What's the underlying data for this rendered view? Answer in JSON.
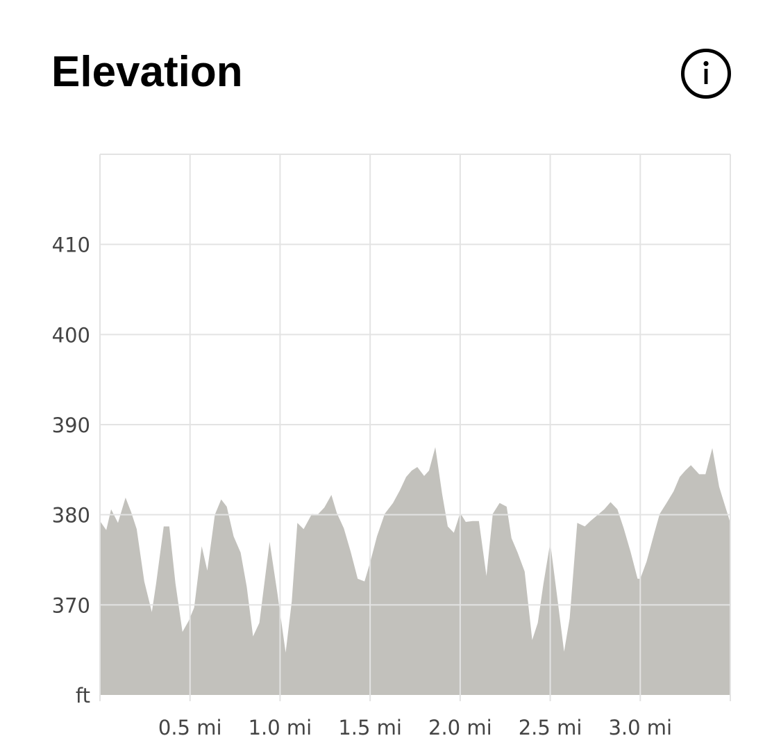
{
  "header": {
    "title": "Elevation",
    "info_icon": "info-icon"
  },
  "colors": {
    "area_fill": "#c2c1bc",
    "grid": "#e3e3e3",
    "tick_text": "#444444"
  },
  "chart_data": {
    "type": "area",
    "title": "Elevation",
    "xlabel": "",
    "ylabel": "",
    "y_unit_label": "ft",
    "xlim": [
      0,
      3.5
    ],
    "ylim": [
      360,
      420
    ],
    "grid": true,
    "x_ticks": [
      {
        "value": 0.5,
        "label": "0.5 mi"
      },
      {
        "value": 1.0,
        "label": "1.0 mi"
      },
      {
        "value": 1.5,
        "label": "1.5 mi"
      },
      {
        "value": 2.0,
        "label": "2.0 mi"
      },
      {
        "value": 2.5,
        "label": "2.5 mi"
      },
      {
        "value": 3.0,
        "label": "3.0 mi"
      }
    ],
    "y_ticks": [
      {
        "value": 360,
        "label": "ft"
      },
      {
        "value": 370,
        "label": "370"
      },
      {
        "value": 380,
        "label": "380"
      },
      {
        "value": 390,
        "label": "390"
      },
      {
        "value": 400,
        "label": "400"
      },
      {
        "value": 410,
        "label": "410"
      }
    ],
    "series": [
      {
        "x": [
          0.0,
          0.035,
          0.062,
          0.1,
          0.142,
          0.173,
          0.204,
          0.246,
          0.288,
          0.312,
          0.354,
          0.385,
          0.419,
          0.458,
          0.492,
          0.523,
          0.565,
          0.596,
          0.638,
          0.673,
          0.704,
          0.742,
          0.781,
          0.815,
          0.85,
          0.885,
          0.942,
          0.985,
          1.031,
          1.065,
          1.096,
          1.131,
          1.177,
          1.208,
          1.246,
          1.285,
          1.315,
          1.354,
          1.392,
          1.431,
          1.469,
          1.5,
          1.538,
          1.581,
          1.627,
          1.665,
          1.7,
          1.731,
          1.762,
          1.8,
          1.827,
          1.862,
          1.9,
          1.931,
          1.965,
          2.0,
          2.031,
          2.069,
          2.104,
          2.146,
          2.181,
          2.219,
          2.258,
          2.285,
          2.319,
          2.358,
          2.4,
          2.431,
          2.462,
          2.5,
          2.538,
          2.577,
          2.608,
          2.65,
          2.692,
          2.723,
          2.765,
          2.8,
          2.835,
          2.873,
          2.908,
          2.946,
          2.985,
          3.0,
          3.035,
          3.077,
          3.108,
          3.146,
          3.185,
          3.219,
          3.25,
          3.281,
          3.327,
          3.362,
          3.4,
          3.438,
          3.5
        ],
        "y": [
          379.3,
          378.3,
          380.6,
          379.1,
          381.9,
          380.3,
          378.4,
          372.6,
          369.2,
          372.4,
          378.7,
          378.7,
          372.4,
          367.0,
          368.2,
          369.7,
          376.5,
          373.8,
          380.0,
          381.7,
          380.9,
          377.6,
          375.8,
          372.0,
          366.5,
          368.0,
          377.0,
          371.3,
          364.7,
          370.4,
          379.1,
          378.4,
          380.1,
          380.0,
          380.8,
          382.2,
          380.2,
          378.5,
          375.9,
          372.9,
          372.6,
          374.7,
          377.6,
          380.1,
          381.3,
          382.7,
          384.2,
          384.9,
          385.3,
          384.3,
          384.9,
          387.5,
          382.3,
          378.7,
          378.0,
          380.2,
          379.2,
          379.3,
          379.3,
          373.2,
          380.1,
          381.3,
          380.9,
          377.4,
          375.8,
          373.7,
          366.1,
          368.0,
          372.3,
          376.9,
          371.0,
          364.8,
          368.5,
          379.1,
          378.7,
          379.3,
          380.0,
          380.6,
          381.4,
          380.6,
          378.5,
          375.9,
          372.9,
          372.9,
          374.8,
          377.9,
          380.1,
          381.3,
          382.6,
          384.2,
          384.9,
          385.5,
          384.5,
          384.5,
          387.4,
          383.1,
          379.1
        ]
      }
    ]
  }
}
